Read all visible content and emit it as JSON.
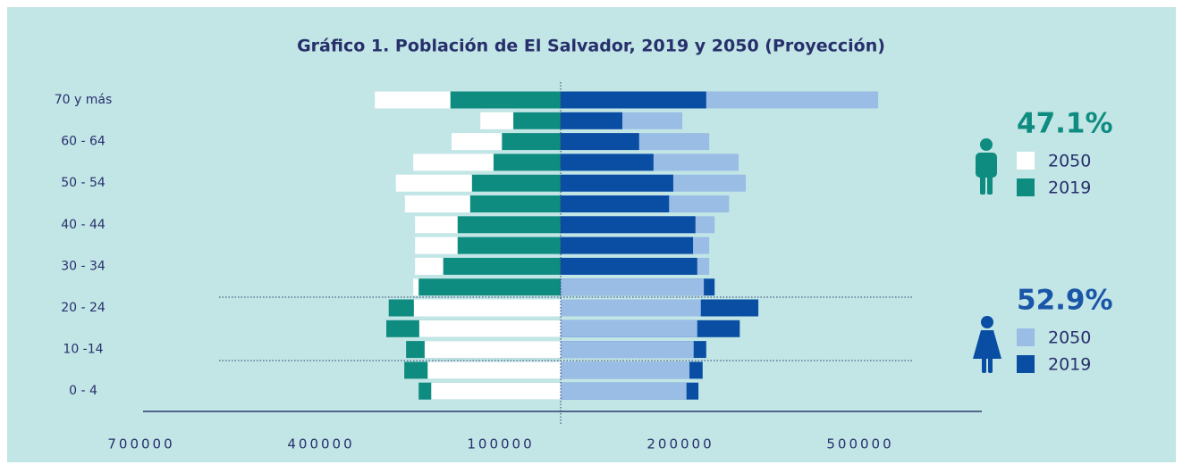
{
  "chart_data": {
    "type": "pyramid",
    "title": "Gráfico 1. Población de El Salvador, 2019 y 2050 (Proyección)",
    "categories": [
      "70 y más",
      null,
      "60 - 64",
      null,
      "50 - 54",
      null,
      "40 - 44",
      null,
      "30 - 34",
      null,
      "20 - 24",
      null,
      "10 -14",
      null,
      "0 - 4"
    ],
    "xlim": [
      -700000,
      700000
    ],
    "xticks": [
      {
        "value": -700000,
        "label": "700000"
      },
      {
        "value": -400000,
        "label": "400000"
      },
      {
        "value": -100000,
        "label": "100000"
      },
      200000,
      500000
    ],
    "groups": [
      {
        "share": 47.1,
        "share_label": "47.1%",
        "color": "#0e8c80",
        "series": [
          {
            "name": "2050",
            "color": "#ffffff",
            "values": [
              310000,
              134000,
              182000,
              246000,
              275000,
              260000,
              243000,
              243000,
              243000,
              246000,
              245000,
              236000,
              227000,
              222000,
              216000
            ]
          },
          {
            "name": "2019",
            "color": "#0e8c80",
            "values": [
              184000,
              79000,
              98000,
              112000,
              148000,
              151000,
              172000,
              172000,
              196000,
              237000,
              287000,
              291000,
              258000,
              261000,
              237000
            ]
          }
        ]
      },
      {
        "share": 52.9,
        "share_label": "52.9%",
        "color": "#1a56a8",
        "series": [
          {
            "name": "2050",
            "color": "#9abde6",
            "values": [
              530000,
              203000,
              248000,
              297000,
              309000,
              281000,
              257000,
              248000,
              248000,
              239000,
              234000,
              228000,
              222000,
              215000,
              210000
            ]
          },
          {
            "name": "2019",
            "color": "#0a4ea3",
            "values": [
              243000,
              103000,
              131000,
              155000,
              188000,
              181000,
              225000,
              221000,
              228000,
              257000,
              330000,
              299000,
              243000,
              237000,
              230000
            ]
          }
        ]
      }
    ]
  }
}
